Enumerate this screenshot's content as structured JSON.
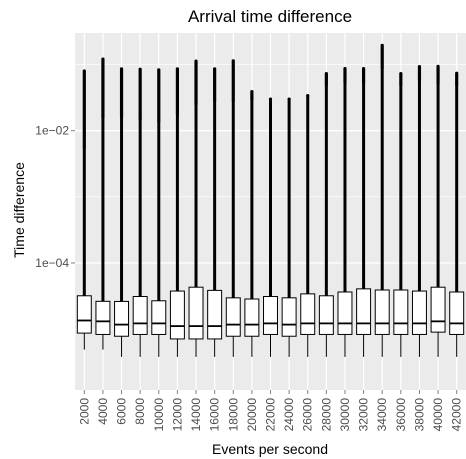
{
  "chart_data": {
    "type": "boxplot",
    "title": "Arrival time difference",
    "xlabel": "Events per second",
    "ylabel": "Time difference",
    "y_scale": "log10",
    "ylim": [
      1.2e-06,
      0.3
    ],
    "y_ticks": [
      {
        "value": 0.0001,
        "label": "1e−04"
      },
      {
        "value": 0.01,
        "label": "1e−02"
      }
    ],
    "grid": true,
    "categories": [
      "2000",
      "4000",
      "6000",
      "8000",
      "10000",
      "12000",
      "14000",
      "16000",
      "18000",
      "20000",
      "22000",
      "24000",
      "26000",
      "28000",
      "30000",
      "32000",
      "34000",
      "36000",
      "38000",
      "40000",
      "42000"
    ],
    "boxes": [
      {
        "whisker_low": 4.9e-06,
        "q1": 8.7e-06,
        "median": 1.35e-05,
        "q3": 3.19e-05,
        "whisker_high": 0.0056,
        "outlier_max": 0.08
      },
      {
        "whisker_low": 4.9e-06,
        "q1": 8.3e-06,
        "median": 1.31e-05,
        "q3": 2.63e-05,
        "whisker_high": 0.016,
        "outlier_max": 0.121
      },
      {
        "whisker_low": 3.8e-06,
        "q1": 7.8e-06,
        "median": 1.17e-05,
        "q3": 2.62e-05,
        "whisker_high": 0.016,
        "outlier_max": 0.086
      },
      {
        "whisker_low": 3.8e-06,
        "q1": 8.3e-06,
        "median": 1.22e-05,
        "q3": 3.11e-05,
        "whisker_high": 0.015,
        "outlier_max": 0.085
      },
      {
        "whisker_low": 3.8e-06,
        "q1": 8.3e-06,
        "median": 1.22e-05,
        "q3": 2.68e-05,
        "whisker_high": 0.014,
        "outlier_max": 0.083
      },
      {
        "whisker_low": 3.8e-06,
        "q1": 7.1e-06,
        "median": 1.11e-05,
        "q3": 3.76e-05,
        "whisker_high": 0.018,
        "outlier_max": 0.086
      },
      {
        "whisker_low": 3.8e-06,
        "q1": 7.1e-06,
        "median": 1.11e-05,
        "q3": 4.3e-05,
        "whisker_high": 0.025,
        "outlier_max": 0.113
      },
      {
        "whisker_low": 3.8e-06,
        "q1": 7.1e-06,
        "median": 1.11e-05,
        "q3": 3.85e-05,
        "whisker_high": 0.029,
        "outlier_max": 0.086
      },
      {
        "whisker_low": 3.8e-06,
        "q1": 7.8e-06,
        "median": 1.17e-05,
        "q3": 2.97e-05,
        "whisker_high": 0.029,
        "outlier_max": 0.114
      },
      {
        "whisker_low": 3.8e-06,
        "q1": 7.8e-06,
        "median": 1.17e-05,
        "q3": 2.85e-05,
        "whisker_high": 0.03,
        "outlier_max": 0.039
      },
      {
        "whisker_low": 3.8e-06,
        "q1": 8.3e-06,
        "median": 1.22e-05,
        "q3": 3.11e-05,
        "whisker_high": 0.03,
        "outlier_max": 0.03
      },
      {
        "whisker_low": 3.8e-06,
        "q1": 7.8e-06,
        "median": 1.17e-05,
        "q3": 2.97e-05,
        "whisker_high": 0.03,
        "outlier_max": 0.03
      },
      {
        "whisker_low": 3.8e-06,
        "q1": 8.3e-06,
        "median": 1.22e-05,
        "q3": 3.41e-05,
        "whisker_high": 0.034,
        "outlier_max": 0.034
      },
      {
        "whisker_low": 3.8e-06,
        "q1": 8.3e-06,
        "median": 1.22e-05,
        "q3": 3.19e-05,
        "whisker_high": 0.05,
        "outlier_max": 0.073
      },
      {
        "whisker_low": 3.8e-06,
        "q1": 8.3e-06,
        "median": 1.22e-05,
        "q3": 3.64e-05,
        "whisker_high": 0.054,
        "outlier_max": 0.087
      },
      {
        "whisker_low": 3.8e-06,
        "q1": 8.3e-06,
        "median": 1.22e-05,
        "q3": 4.06e-05,
        "whisker_high": 0.054,
        "outlier_max": 0.087
      },
      {
        "whisker_low": 3.8e-06,
        "q1": 8.3e-06,
        "median": 1.22e-05,
        "q3": 3.9e-05,
        "whisker_high": 0.09,
        "outlier_max": 0.195
      },
      {
        "whisker_low": 3.8e-06,
        "q1": 8.3e-06,
        "median": 1.22e-05,
        "q3": 3.9e-05,
        "whisker_high": 0.05,
        "outlier_max": 0.073
      },
      {
        "whisker_low": 3.8e-06,
        "q1": 8.3e-06,
        "median": 1.22e-05,
        "q3": 3.76e-05,
        "whisker_high": 0.059,
        "outlier_max": 0.093
      },
      {
        "whisker_low": 3.8e-06,
        "q1": 9e-06,
        "median": 1.31e-05,
        "q3": 4.3e-05,
        "whisker_high": 0.053,
        "outlier_max": 0.094
      },
      {
        "whisker_low": 3.8e-06,
        "q1": 8.3e-06,
        "median": 1.22e-05,
        "q3": 3.64e-05,
        "whisker_high": 0.05,
        "outlier_max": 0.074
      }
    ],
    "colors": {
      "panel": "#ebebeb",
      "grid": "#ffffff",
      "box_fill": "#ffffff",
      "ink": "#000000"
    }
  }
}
